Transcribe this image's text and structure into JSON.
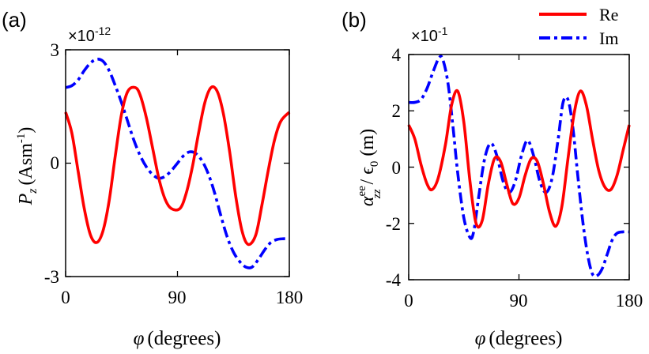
{
  "chart_data": [
    {
      "type": "line",
      "panel_label": "(a)",
      "scale_label": "×10-12",
      "scale_base": "×10",
      "scale_exp": "-12",
      "xlabel": "φ (degrees)",
      "xlabel_symbol": "φ",
      "xlabel_text": "(degrees)",
      "ylabel": "Pz (Asm-1)",
      "ylabel_main": "P",
      "ylabel_sub": "z",
      "ylabel_unit": "(Asm",
      "ylabel_exp": "-1",
      "ylabel_close": ")",
      "xlim": [
        0,
        180
      ],
      "ylim": [
        -3,
        3
      ],
      "xticks": [
        "0",
        "90",
        "180"
      ],
      "xtick_values": [
        0,
        90,
        180
      ],
      "yticks": [
        "-3",
        "0",
        "3"
      ],
      "ytick_values": [
        -3,
        0,
        3
      ],
      "series": [
        {
          "name": "Re",
          "color": "#ff0000",
          "style": "solid",
          "x": [
            0,
            5,
            10,
            15,
            20,
            25,
            30,
            35,
            40,
            45,
            50,
            56,
            60,
            65,
            70,
            75,
            80,
            85,
            92,
            97,
            102,
            107,
            112,
            117,
            122,
            127,
            132,
            137,
            142,
            147,
            153,
            158,
            163,
            168,
            173,
            180
          ],
          "y": [
            1.35,
            0.8,
            -0.2,
            -1.2,
            -1.9,
            -2.1,
            -1.8,
            -1.0,
            0.2,
            1.3,
            1.9,
            2.0,
            1.8,
            1.2,
            0.4,
            -0.4,
            -0.95,
            -1.2,
            -1.2,
            -0.8,
            -0.1,
            0.8,
            1.6,
            2.0,
            1.9,
            1.3,
            0.3,
            -0.9,
            -1.8,
            -2.15,
            -1.9,
            -1.1,
            -0.2,
            0.6,
            1.1,
            1.35
          ]
        },
        {
          "name": "Im",
          "color": "#0000ff",
          "style": "dashdot",
          "x": [
            0,
            5,
            10,
            15,
            20,
            25,
            30,
            35,
            40,
            45,
            50,
            55,
            60,
            65,
            70,
            75,
            80,
            85,
            90,
            95,
            100,
            105,
            110,
            115,
            120,
            125,
            130,
            135,
            140,
            145,
            150,
            155,
            160,
            165,
            170,
            175,
            180
          ],
          "y": [
            2.0,
            2.05,
            2.2,
            2.45,
            2.65,
            2.75,
            2.7,
            2.45,
            2.05,
            1.6,
            1.1,
            0.6,
            0.2,
            -0.1,
            -0.3,
            -0.4,
            -0.35,
            -0.2,
            0.0,
            0.2,
            0.3,
            0.25,
            0.05,
            -0.3,
            -0.8,
            -1.4,
            -1.95,
            -2.35,
            -2.6,
            -2.75,
            -2.75,
            -2.55,
            -2.3,
            -2.1,
            -2.02,
            -2.0,
            -2.0
          ]
        }
      ]
    },
    {
      "type": "line",
      "panel_label": "(b)",
      "scale_label": "×10-1",
      "scale_base": "×10",
      "scale_exp": "-1",
      "xlabel": "φ (degrees)",
      "xlabel_symbol": "φ",
      "xlabel_text": "(degrees)",
      "ylabel": "αzz ee / ϵ0 (m)",
      "ylabel_main": "α",
      "ylabel_sup": "ee",
      "ylabel_sub": "zz",
      "ylabel_mid": " / ϵ",
      "ylabel_sub2": "0",
      "ylabel_unit": " (m)",
      "xlim": [
        0,
        180
      ],
      "ylim": [
        -4,
        4
      ],
      "xticks": [
        "0",
        "90",
        "180"
      ],
      "xtick_values": [
        0,
        90,
        180
      ],
      "yticks": [
        "-4",
        "-2",
        "0",
        "2",
        "4"
      ],
      "ytick_values": [
        -4,
        -2,
        0,
        2,
        4
      ],
      "legend": {
        "position": "top-right",
        "entries": [
          "Re",
          "Im"
        ]
      },
      "series": [
        {
          "name": "Re",
          "color": "#ff0000",
          "style": "solid",
          "x": [
            0,
            5,
            10,
            15,
            19,
            24,
            30,
            35,
            40,
            45,
            50,
            55,
            60,
            65,
            70,
            75,
            80,
            85,
            90,
            95,
            100,
            105,
            110,
            115,
            120,
            125,
            130,
            135,
            140,
            145,
            150,
            155,
            160,
            165,
            170,
            175,
            180
          ],
          "y": [
            1.5,
            1.0,
            0.1,
            -0.6,
            -0.8,
            -0.4,
            0.8,
            2.2,
            2.7,
            1.6,
            -0.5,
            -2.0,
            -1.9,
            -0.6,
            0.3,
            0.2,
            -0.6,
            -1.3,
            -1.1,
            -0.3,
            0.3,
            0.2,
            -0.6,
            -1.6,
            -2.1,
            -1.4,
            0.3,
            1.9,
            2.7,
            2.2,
            1.0,
            -0.1,
            -0.7,
            -0.8,
            -0.3,
            0.6,
            1.5
          ]
        },
        {
          "name": "Im",
          "color": "#0000ff",
          "style": "dashdot",
          "x": [
            0,
            5,
            10,
            15,
            20,
            25,
            28,
            32,
            36,
            40,
            45,
            50,
            53,
            57,
            62,
            67,
            72,
            77,
            82,
            87,
            92,
            97,
            102,
            107,
            112,
            117,
            122,
            126,
            130,
            134,
            138,
            142,
            146,
            150,
            154,
            158,
            162,
            166,
            170,
            175,
            180
          ],
          "y": [
            2.3,
            2.3,
            2.4,
            2.8,
            3.4,
            3.9,
            3.8,
            3.0,
            1.5,
            -0.2,
            -1.8,
            -2.5,
            -2.3,
            -1.1,
            0.3,
            0.85,
            0.4,
            -0.5,
            -0.9,
            -0.5,
            0.4,
            0.95,
            0.4,
            -0.5,
            -0.9,
            -0.4,
            1.0,
            2.3,
            2.4,
            1.4,
            -0.3,
            -1.9,
            -3.1,
            -3.8,
            -3.85,
            -3.6,
            -3.1,
            -2.6,
            -2.35,
            -2.3,
            -2.3
          ]
        }
      ]
    }
  ]
}
